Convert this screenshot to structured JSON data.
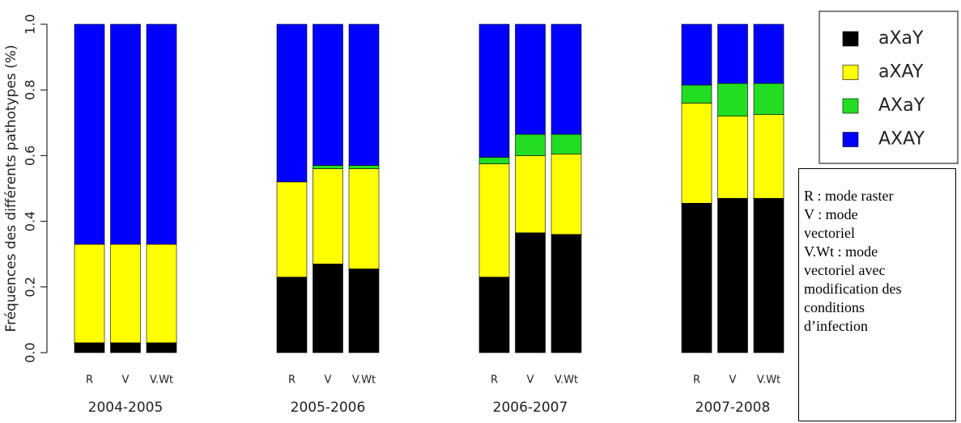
{
  "chart_data": {
    "type": "stacked-bar",
    "y_label": "Fréquences des différents pathotypes (%)",
    "groups": [
      "2004-2005",
      "2005-2006",
      "2006-2007",
      "2007-2008"
    ],
    "categories": [
      "R",
      "V",
      "V.Wt",
      "R",
      "V",
      "V.Wt",
      "R",
      "V",
      "V.Wt",
      "R",
      "V",
      "V.Wt"
    ],
    "series": [
      {
        "name": "aXaY",
        "color": "#000000",
        "values": [
          0.03,
          0.03,
          0.03,
          0.23,
          0.27,
          0.255,
          0.23,
          0.365,
          0.36,
          0.455,
          0.47,
          0.47
        ]
      },
      {
        "name": "aXAY",
        "color": "#ffff00",
        "values": [
          0.3,
          0.3,
          0.3,
          0.29,
          0.29,
          0.305,
          0.345,
          0.235,
          0.245,
          0.305,
          0.25,
          0.255
        ]
      },
      {
        "name": "AXaY",
        "color": "#22dd22",
        "values": [
          0,
          0,
          0,
          0,
          0.01,
          0.01,
          0.02,
          0.065,
          0.06,
          0.055,
          0.1,
          0.095
        ]
      },
      {
        "name": "AXAY",
        "color": "#0000ff",
        "values": [
          0.67,
          0.67,
          0.67,
          0.48,
          0.43,
          0.43,
          0.405,
          0.335,
          0.335,
          0.185,
          0.18,
          0.18
        ]
      }
    ],
    "ylim": [
      0,
      1
    ],
    "yticks": [
      {
        "value": 0,
        "label": "0.0"
      },
      0.2,
      0.4,
      0.6,
      0.8,
      {
        "value": 1,
        "label": "1.0"
      }
    ],
    "legend_position": "top-right",
    "note": [
      "R : mode raster",
      "V : mode vectoriel",
      "V.Wt : mode vectoriel avec modification des conditions d’infection"
    ]
  }
}
